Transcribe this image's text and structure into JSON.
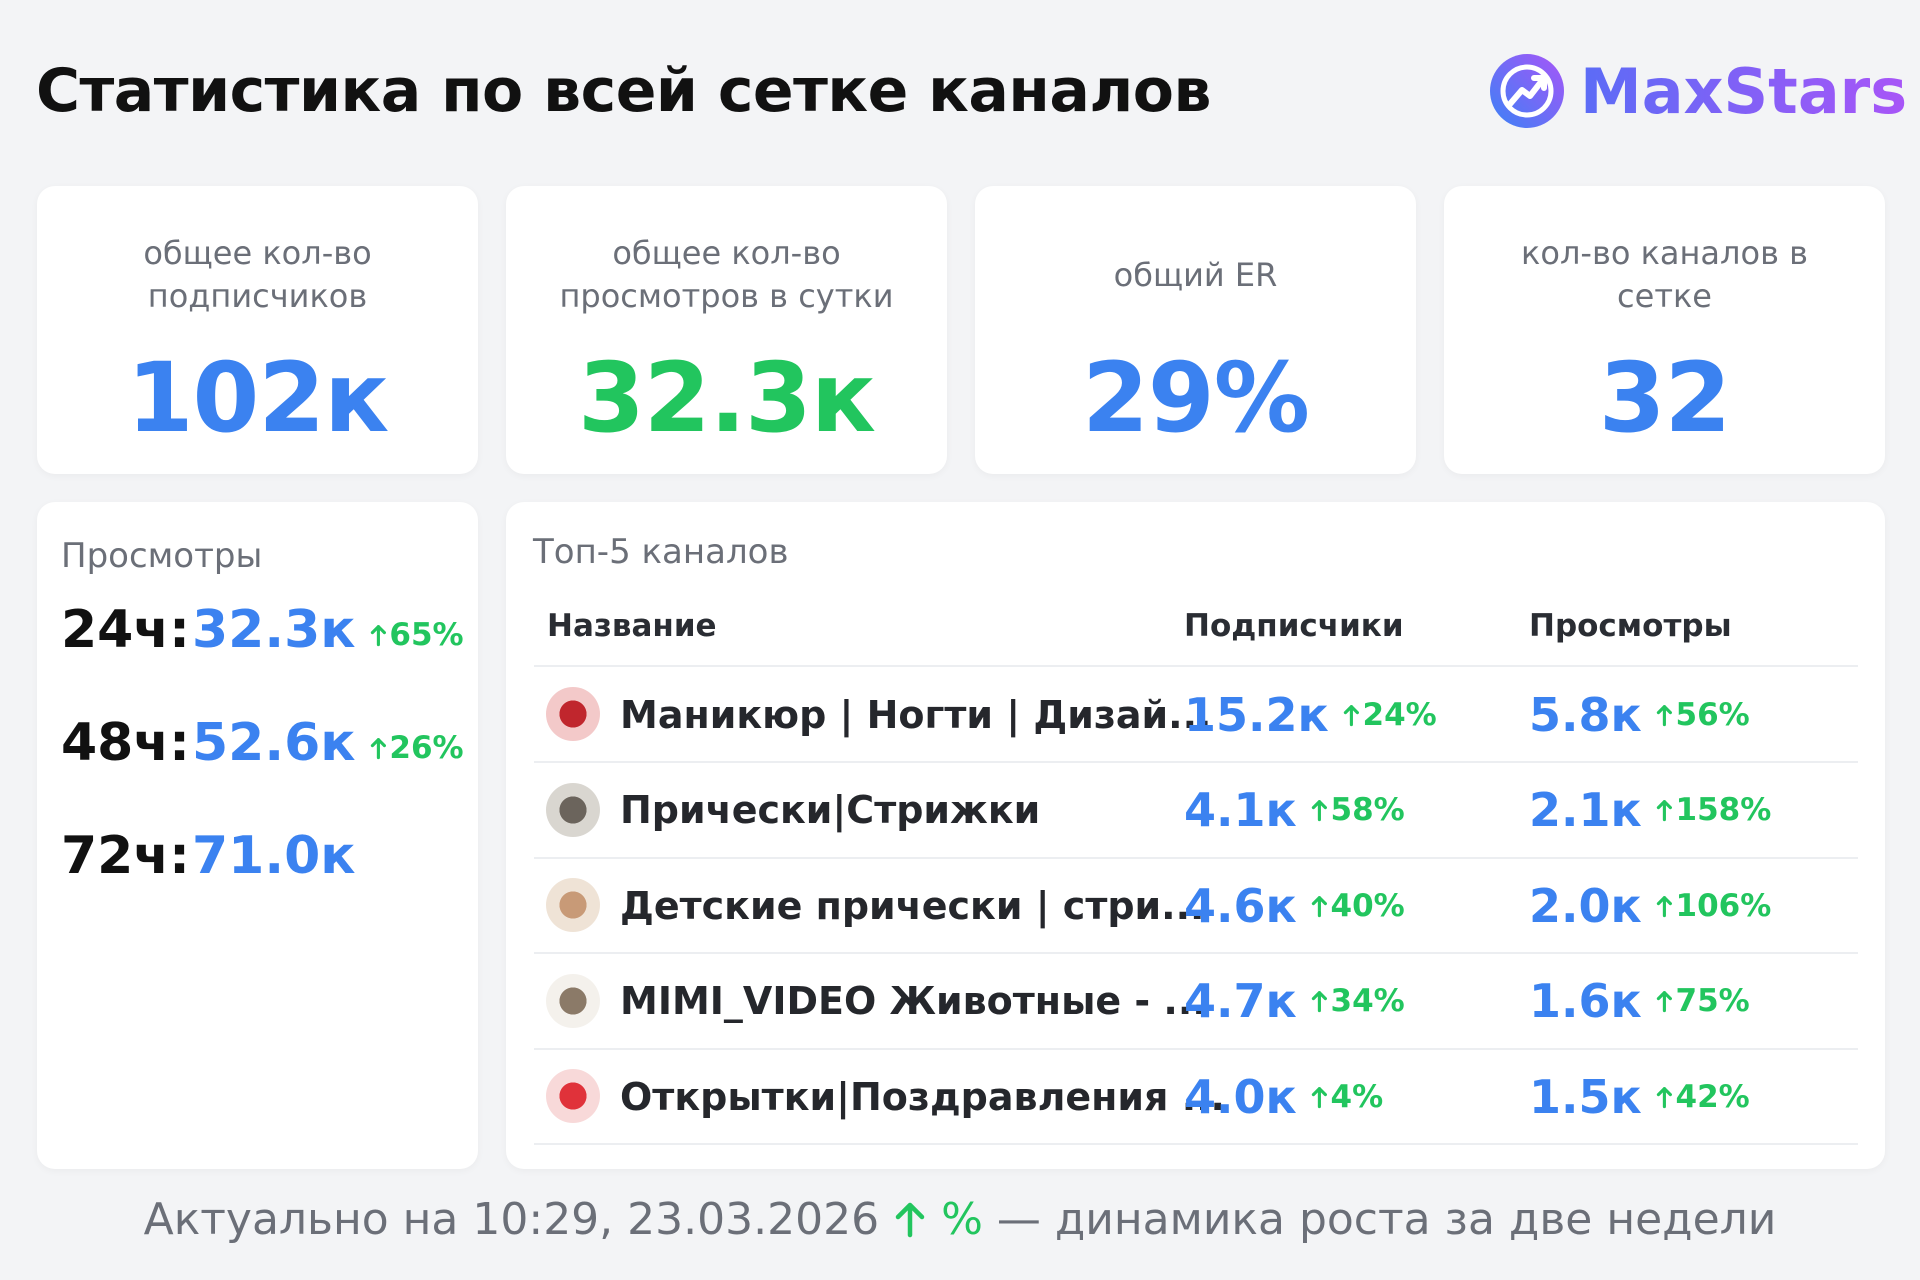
{
  "header": {
    "title": "Статистика по всей сетке каналов",
    "logo": "MaxStars"
  },
  "cards": [
    {
      "label_lines": [
        "общее кол-во",
        "подписчиков"
      ],
      "value": "102к",
      "color": "#3b82f0"
    },
    {
      "label_lines": [
        "общее кол-во",
        "просмотров в сутки"
      ],
      "value": "32.3к",
      "color": "#22c55e"
    },
    {
      "label_lines": [
        "общий ER"
      ],
      "value": "29%",
      "color": "#3b82f0"
    },
    {
      "label_lines": [
        "кол-во каналов в",
        "сетке"
      ],
      "value": "32",
      "color": "#3b82f0"
    }
  ],
  "views": {
    "title": "Просмотры",
    "rows": [
      {
        "period": "24ч:",
        "value": "32.3к",
        "change": "65%"
      },
      {
        "period": "48ч:",
        "value": "52.6к",
        "change": "26%"
      },
      {
        "period": "72ч:",
        "value": "71.0к"
      }
    ]
  },
  "table": {
    "title": "Топ-5 каналов",
    "headers": [
      "Название",
      "Подписчики",
      "Просмотры"
    ],
    "rows": [
      {
        "name": "Маникюр | Ногти | Дизай...",
        "subscribers": "15.2к",
        "subscribers_change": "24%",
        "views": "5.8к",
        "views_change": "56%"
      },
      {
        "name": "Прически|Стрижки",
        "subscribers": "4.1к",
        "subscribers_change": "58%",
        "views": "2.1к",
        "views_change": "158%"
      },
      {
        "name": "Детские прически | стри...",
        "subscribers": "4.6к",
        "subscribers_change": "40%",
        "views": "2.0к",
        "views_change": "106%"
      },
      {
        "name": "MIMI_VIDEO Животные - ...",
        "subscribers": "4.7к",
        "subscribers_change": "34%",
        "views": "1.6к",
        "views_change": "75%"
      },
      {
        "name": "Открытки|Поздравления ...",
        "subscribers": "4.0к",
        "subscribers_change": "4%",
        "views": "1.5к",
        "views_change": "42%"
      }
    ]
  },
  "footer": {
    "text": "Актуально на 10:29, 23.03.2026",
    "legend": "%",
    "note": "— динамика роста за две недели"
  }
}
